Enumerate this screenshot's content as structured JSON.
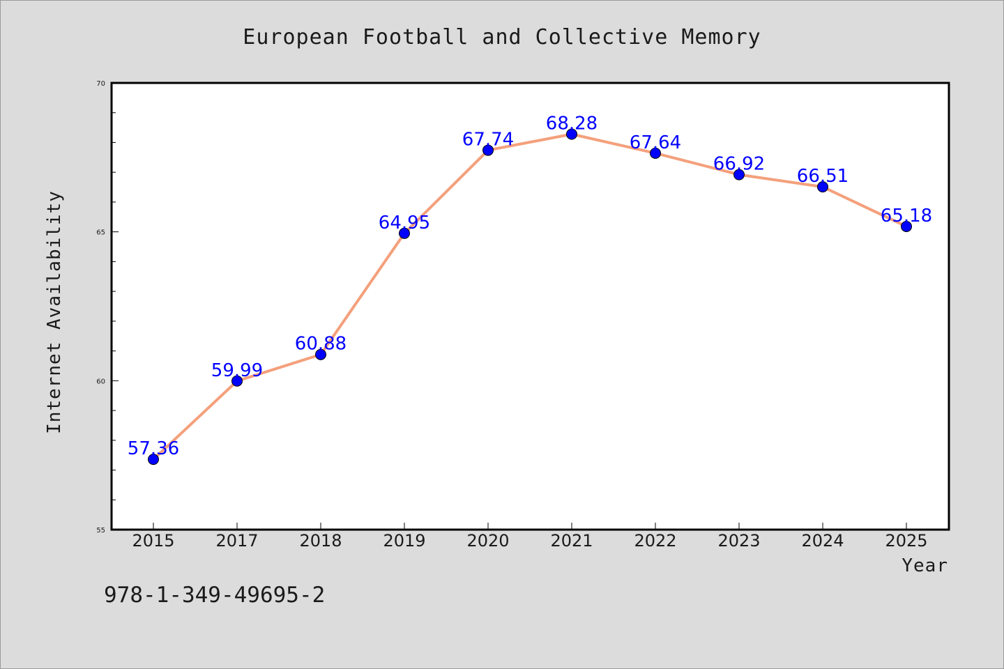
{
  "chart_data": {
    "type": "line",
    "title": "European Football and Collective Memory",
    "xlabel": "Year",
    "ylabel": "Internet Availability",
    "categories": [
      "2015",
      "2017",
      "2018",
      "2019",
      "2020",
      "2021",
      "2022",
      "2023",
      "2024",
      "2025"
    ],
    "series": [
      {
        "values": [
          57.36,
          59.99,
          60.88,
          64.95,
          67.74,
          68.28,
          67.64,
          66.92,
          66.51,
          65.18
        ],
        "labels": [
          "57.36",
          "59.99",
          "60.88",
          "64.95",
          "67.74",
          "68.28",
          "67.64",
          "66.92",
          "66.51",
          "65.18"
        ],
        "line_color": "#f4a07c",
        "marker_color": "#0000ff"
      }
    ],
    "ylim": [
      55,
      70
    ],
    "yticks": [
      "55",
      "60",
      "65",
      "70"
    ],
    "grid": false,
    "legend": "none"
  },
  "annotation": "978-1-349-49695-2",
  "colors": {
    "background": "#dcdcdc",
    "plot_background": "#ffffff",
    "line": "#f4a07c",
    "marker": "#0000ff",
    "data_label": "#0000ff"
  }
}
